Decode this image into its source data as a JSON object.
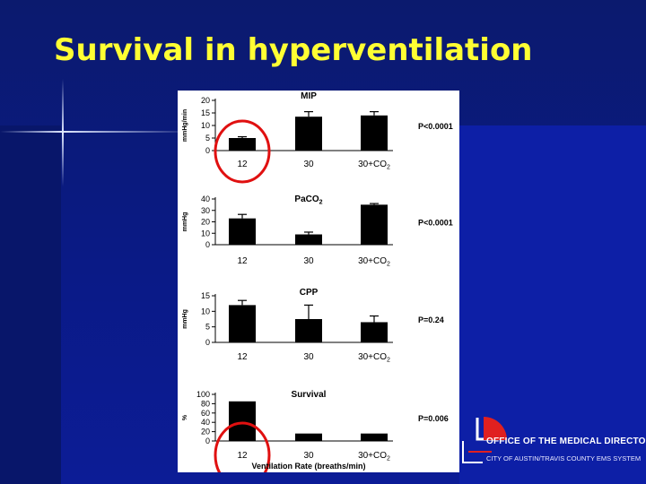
{
  "slide": {
    "title": "Survival in hyperventilation",
    "colors": {
      "background": "#0a1670",
      "title": "#ffff33",
      "highlight_circle": "#e01010",
      "logo_red": "#e02020"
    }
  },
  "logo": {
    "main": "Office of the Medical Director",
    "sub": "City of Austin/Travis County EMS System"
  },
  "chart_data": [
    {
      "type": "bar",
      "title": "MIP",
      "ylabel": "mmHg/min",
      "categories": [
        "12",
        "30",
        "30+CO2"
      ],
      "values": [
        5,
        13.5,
        14
      ],
      "errors": [
        0.5,
        2,
        1.5
      ],
      "ylim": [
        0,
        20
      ],
      "yticks": [
        0,
        5,
        10,
        15,
        20
      ],
      "p_value": "P<0.0001",
      "highlighted": "12"
    },
    {
      "type": "bar",
      "title": "PaCO2",
      "ylabel": "mmHg",
      "categories": [
        "12",
        "30",
        "30+CO2"
      ],
      "values": [
        23,
        9,
        35
      ],
      "errors": [
        3.5,
        2,
        1
      ],
      "ylim": [
        0,
        40
      ],
      "yticks": [
        0,
        10,
        20,
        30,
        40
      ],
      "p_value": "P<0.0001"
    },
    {
      "type": "bar",
      "title": "CPP",
      "ylabel": "mmHg",
      "categories": [
        "12",
        "30",
        "30+CO2"
      ],
      "values": [
        12,
        7.5,
        6.5
      ],
      "errors": [
        1.5,
        4.5,
        2
      ],
      "ylim": [
        0,
        15
      ],
      "yticks": [
        0,
        5,
        10,
        15
      ],
      "p_value": "P=0.24"
    },
    {
      "type": "bar",
      "title": "Survival",
      "ylabel": "%",
      "xlabel": "Ventilation Rate (breaths/min)",
      "categories": [
        "12",
        "30",
        "30+CO2"
      ],
      "values": [
        85,
        16,
        16
      ],
      "errors": [
        0,
        0,
        0
      ],
      "ylim": [
        0,
        100
      ],
      "yticks": [
        0,
        20,
        40,
        60,
        80,
        100
      ],
      "p_value": "P=0.006",
      "highlighted": "12"
    }
  ]
}
